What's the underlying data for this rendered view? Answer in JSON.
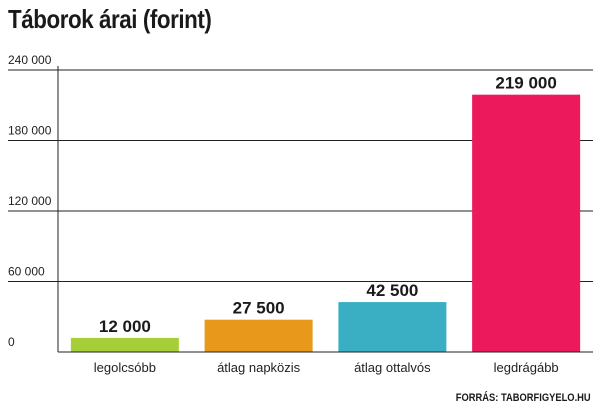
{
  "source": "FORRÁS: TABORFIGYELO.HU",
  "chart_data": {
    "type": "bar",
    "title": "Táborok árai (forint)",
    "categories": [
      "legolcsóbb",
      "átlag napközis",
      "átlag ottalvós",
      "legdrágább"
    ],
    "values": [
      12000,
      27500,
      42500,
      219000
    ],
    "value_labels": [
      "12 000",
      "27 500",
      "42 500",
      "219 000"
    ],
    "colors": [
      "#a6ce39",
      "#e8991c",
      "#3aafc4",
      "#ec1a5c"
    ],
    "ylim": [
      0,
      240000
    ],
    "yticks": [
      0,
      60000,
      120000,
      180000,
      240000
    ],
    "ytick_labels": [
      "0",
      "60 000",
      "120 000",
      "180 000",
      "240 000"
    ],
    "xlabel": "",
    "ylabel": "",
    "grid": true
  }
}
